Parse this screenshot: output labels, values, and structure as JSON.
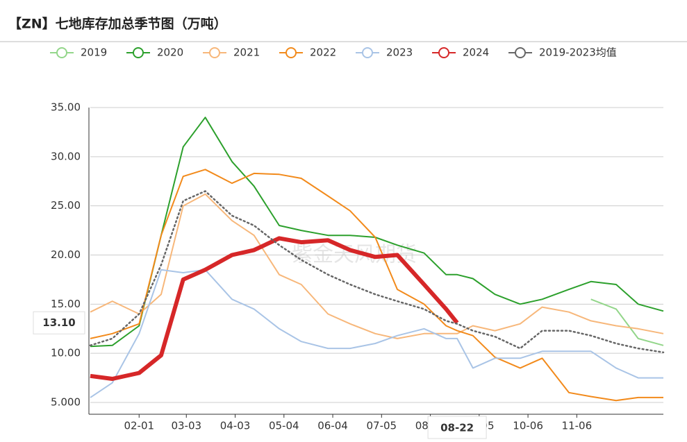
{
  "chart_data": {
    "type": "line",
    "title": "【ZN】七地库存加总季节图（万吨）",
    "watermark": "紫金天风期货",
    "x": [
      "01-01",
      "01-15",
      "02-01",
      "02-15",
      "03-01",
      "03-15",
      "04-01",
      "04-15",
      "05-01",
      "05-15",
      "06-01",
      "06-15",
      "07-01",
      "07-15",
      "08-01",
      "08-15",
      "08-22",
      "09-01",
      "09-15",
      "10-01",
      "10-15",
      "11-01",
      "11-15",
      "12-01",
      "12-15",
      "12-31"
    ],
    "xlim": [
      "01-01",
      "12-31"
    ],
    "xticks": [
      "02-01",
      "03-03",
      "04-03",
      "05-04",
      "06-04",
      "07-05",
      "08-05",
      "09-05",
      "10-06",
      "11-06"
    ],
    "ylim": [
      3.8,
      35
    ],
    "yticks": [
      {
        "value": 5,
        "label": "5.000"
      },
      {
        "value": 10,
        "label": "10.00"
      },
      {
        "value": 15,
        "label": "15.00"
      },
      {
        "value": 20,
        "label": "20.00"
      },
      {
        "value": 25,
        "label": "25.00"
      },
      {
        "value": 30,
        "label": "30.00"
      },
      {
        "value": 35,
        "label": "35.00"
      }
    ],
    "grid": true,
    "legend": "top",
    "crosshair": {
      "x": "08-22",
      "y": {
        "value": 13.1,
        "label": "13.10"
      }
    },
    "series": [
      {
        "name": "2019",
        "color": "#93d68a",
        "values": [
          null,
          null,
          null,
          null,
          null,
          null,
          null,
          null,
          null,
          null,
          null,
          null,
          null,
          null,
          null,
          null,
          null,
          null,
          null,
          null,
          null,
          null,
          15.5,
          14.5,
          11.5,
          10.8
        ]
      },
      {
        "name": "2020",
        "color": "#2ca02c",
        "values": [
          10.7,
          10.8,
          12.8,
          22,
          31,
          34,
          29.5,
          27,
          23,
          22.5,
          22,
          22,
          21.8,
          21,
          20.2,
          18,
          18,
          17.6,
          16,
          15,
          15.5,
          16.5,
          17.3,
          17,
          15,
          14.3
        ]
      },
      {
        "name": "2021",
        "color": "#f7b77a",
        "values": [
          14.2,
          15.3,
          14,
          16,
          25,
          26.2,
          23.5,
          22,
          18,
          17,
          14,
          13,
          12,
          11.5,
          12,
          12,
          12,
          12.8,
          12.3,
          13,
          14.7,
          14.2,
          13.3,
          12.8,
          12.5,
          12
        ]
      },
      {
        "name": "2022",
        "color": "#f28a1b",
        "values": [
          11.5,
          12,
          13,
          22,
          28,
          28.7,
          27.3,
          28.3,
          28.2,
          27.8,
          26,
          24.5,
          21.8,
          16.5,
          15,
          12.8,
          12.3,
          11.8,
          9.6,
          8.5,
          9.5,
          6,
          5.6,
          5.2,
          5.5,
          5.5
        ]
      },
      {
        "name": "2023",
        "color": "#a9c4e6",
        "values": [
          5.5,
          7,
          12,
          18.5,
          18.2,
          18.5,
          15.5,
          14.5,
          12.5,
          11.2,
          10.5,
          10.5,
          11,
          11.8,
          12.5,
          11.5,
          11.5,
          8.5,
          9.5,
          9.5,
          10.2,
          10.2,
          10.2,
          8.5,
          7.5,
          7.5
        ]
      },
      {
        "name": "2024",
        "color": "#d62728",
        "highlight": true,
        "values": [
          7.7,
          7.4,
          8,
          9.8,
          17.5,
          18.5,
          20,
          20.5,
          21.7,
          21.3,
          21.5,
          20.5,
          19.8,
          20,
          17,
          14.5,
          13.1,
          null,
          null,
          null,
          null,
          null,
          null,
          null,
          null,
          null
        ]
      },
      {
        "name": "2019-2023均值",
        "color": "#666666",
        "dashed": true,
        "values": [
          10.8,
          11.5,
          14,
          19,
          25.5,
          26.5,
          24,
          23,
          21,
          19.5,
          18,
          17,
          16,
          15.3,
          14.5,
          13.3,
          13,
          12.3,
          11.7,
          10.5,
          12.3,
          12.3,
          11.8,
          11,
          10.5,
          10.1
        ]
      }
    ]
  }
}
